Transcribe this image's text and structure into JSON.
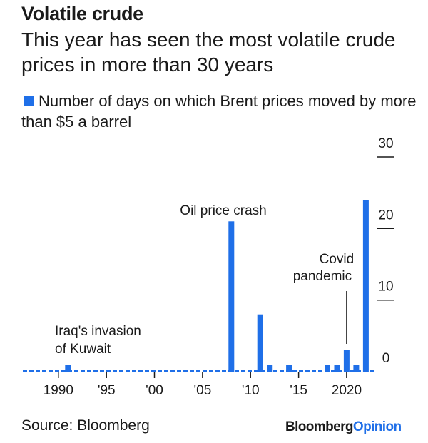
{
  "title": "Volatile crude",
  "subtitle": "This year has seen the most volatile crude prices in more than 30 years",
  "legend_label": "Number of days on which Brent prices moved by more than $5 a barrel",
  "source": "Source: Bloomberg",
  "brand": {
    "part1": "Bloomberg",
    "part2": "Opinion"
  },
  "colors": {
    "bar": "#1f6fe8",
    "brand_accent": "#1f6fe8",
    "text": "#1a1a1a"
  },
  "chart_data": {
    "type": "bar",
    "title": "Volatile crude",
    "ylabel": "Number of days on which Brent prices moved by more than $5 a barrel",
    "ylim": [
      0,
      30
    ],
    "yticks": [
      0,
      10,
      20,
      30
    ],
    "xtick_years": [
      1990,
      1995,
      2000,
      2005,
      2010,
      2015,
      2020
    ],
    "xtick_labels": [
      "1990",
      "'95",
      "'00",
      "'05",
      "'10",
      "'15",
      "2020"
    ],
    "x": [
      1988,
      1989,
      1990,
      1991,
      1992,
      1993,
      1994,
      1995,
      1996,
      1997,
      1998,
      1999,
      2000,
      2001,
      2002,
      2003,
      2004,
      2005,
      2006,
      2007,
      2008,
      2009,
      2010,
      2011,
      2012,
      2013,
      2014,
      2015,
      2016,
      2017,
      2018,
      2019,
      2020,
      2021,
      2022
    ],
    "values": [
      0,
      0,
      0,
      1,
      0,
      0,
      0,
      0,
      0,
      0,
      0,
      0,
      0,
      0,
      0,
      0,
      0,
      0,
      0,
      0,
      21,
      0,
      0,
      8,
      1,
      0,
      1,
      0,
      0,
      0,
      1,
      1,
      3,
      1,
      24
    ],
    "annotations": [
      {
        "label": "Iraq's invasion of Kuwait",
        "lines": [
          "Iraq's invasion",
          "of Kuwait"
        ],
        "year": 1991
      },
      {
        "label": "Oil price crash",
        "lines": [
          "Oil price crash"
        ],
        "year": 2008
      },
      {
        "label": "Covid pandemic",
        "lines": [
          "Covid",
          "pandemic"
        ],
        "year": 2020
      }
    ]
  }
}
